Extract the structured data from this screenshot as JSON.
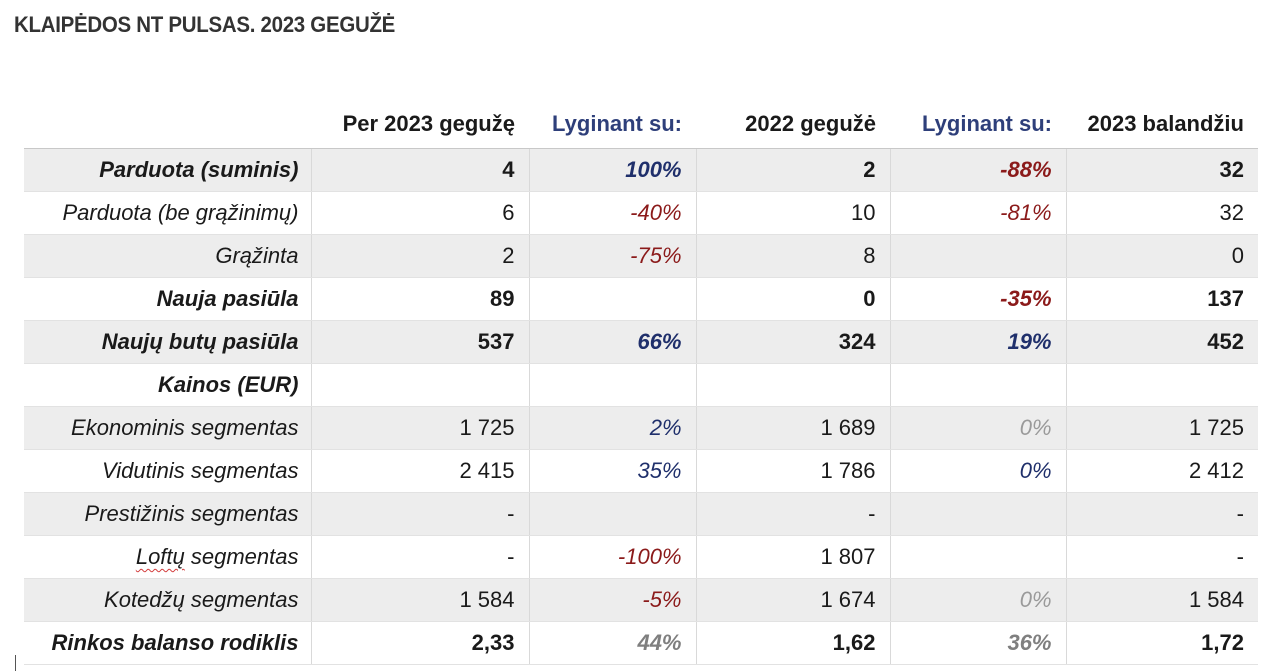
{
  "title": "KLAIPĖDOS NT PULSAS. 2023 GEGUŽĖ",
  "headers": [
    "",
    "Per 2023 gegužę",
    "Lyginant su:",
    "2022 gegužė",
    "Lyginant su:",
    "2023 balandžiu"
  ],
  "rows": [
    {
      "label": "Parduota (suminis)",
      "v1": "4",
      "p1": "100%",
      "v2": "2",
      "p2": "-88%",
      "v3": "32"
    },
    {
      "label": "Parduota (be grąžinimų)",
      "v1": "6",
      "p1": "-40%",
      "v2": "10",
      "p2": "-81%",
      "v3": "32"
    },
    {
      "label": "Grąžinta",
      "v1": "2",
      "p1": "-75%",
      "v2": "8",
      "p2": "",
      "v3": "0"
    },
    {
      "label": "Nauja pasiūla",
      "v1": "89",
      "p1": "",
      "v2": "0",
      "p2": "-35%",
      "v3": "137"
    },
    {
      "label": "Naujų butų pasiūla",
      "v1": "537",
      "p1": "66%",
      "v2": "324",
      "p2": "19%",
      "v3": "452"
    },
    {
      "label": "Kainos (EUR)",
      "v1": "",
      "p1": "",
      "v2": "",
      "p2": "",
      "v3": ""
    },
    {
      "label": "Ekonominis segmentas",
      "v1": "1 725",
      "p1": "2%",
      "v2": "1 689",
      "p2": "0%",
      "v3": "1 725"
    },
    {
      "label": "Vidutinis segmentas",
      "v1": "2 415",
      "p1": "35%",
      "v2": "1 786",
      "p2": "0%",
      "v3": "2 412"
    },
    {
      "label": "Prestižinis segmentas",
      "v1": "-",
      "p1": "",
      "v2": "-",
      "p2": "",
      "v3": "-"
    },
    {
      "label_word": "Loftų",
      "label_rest": " segmentas",
      "v1": "-",
      "p1": "-100%",
      "v2": "1 807",
      "p2": "",
      "v3": "-"
    },
    {
      "label": "Kotedžų segmentas",
      "v1": "1 584",
      "p1": "-5%",
      "v2": "1 674",
      "p2": "0%",
      "v3": "1 584"
    },
    {
      "label": "Rinkos balanso rodiklis",
      "v1": "2,33",
      "p1": "44%",
      "v2": "1,62",
      "p2": "36%",
      "v3": "1,72"
    }
  ],
  "colors": {
    "positive": "#1f2f6b",
    "negative": "#8b1a1a",
    "neutral": "#9a9a9a",
    "header_compare": "#2e3f7a",
    "row_shade": "#ededed"
  }
}
